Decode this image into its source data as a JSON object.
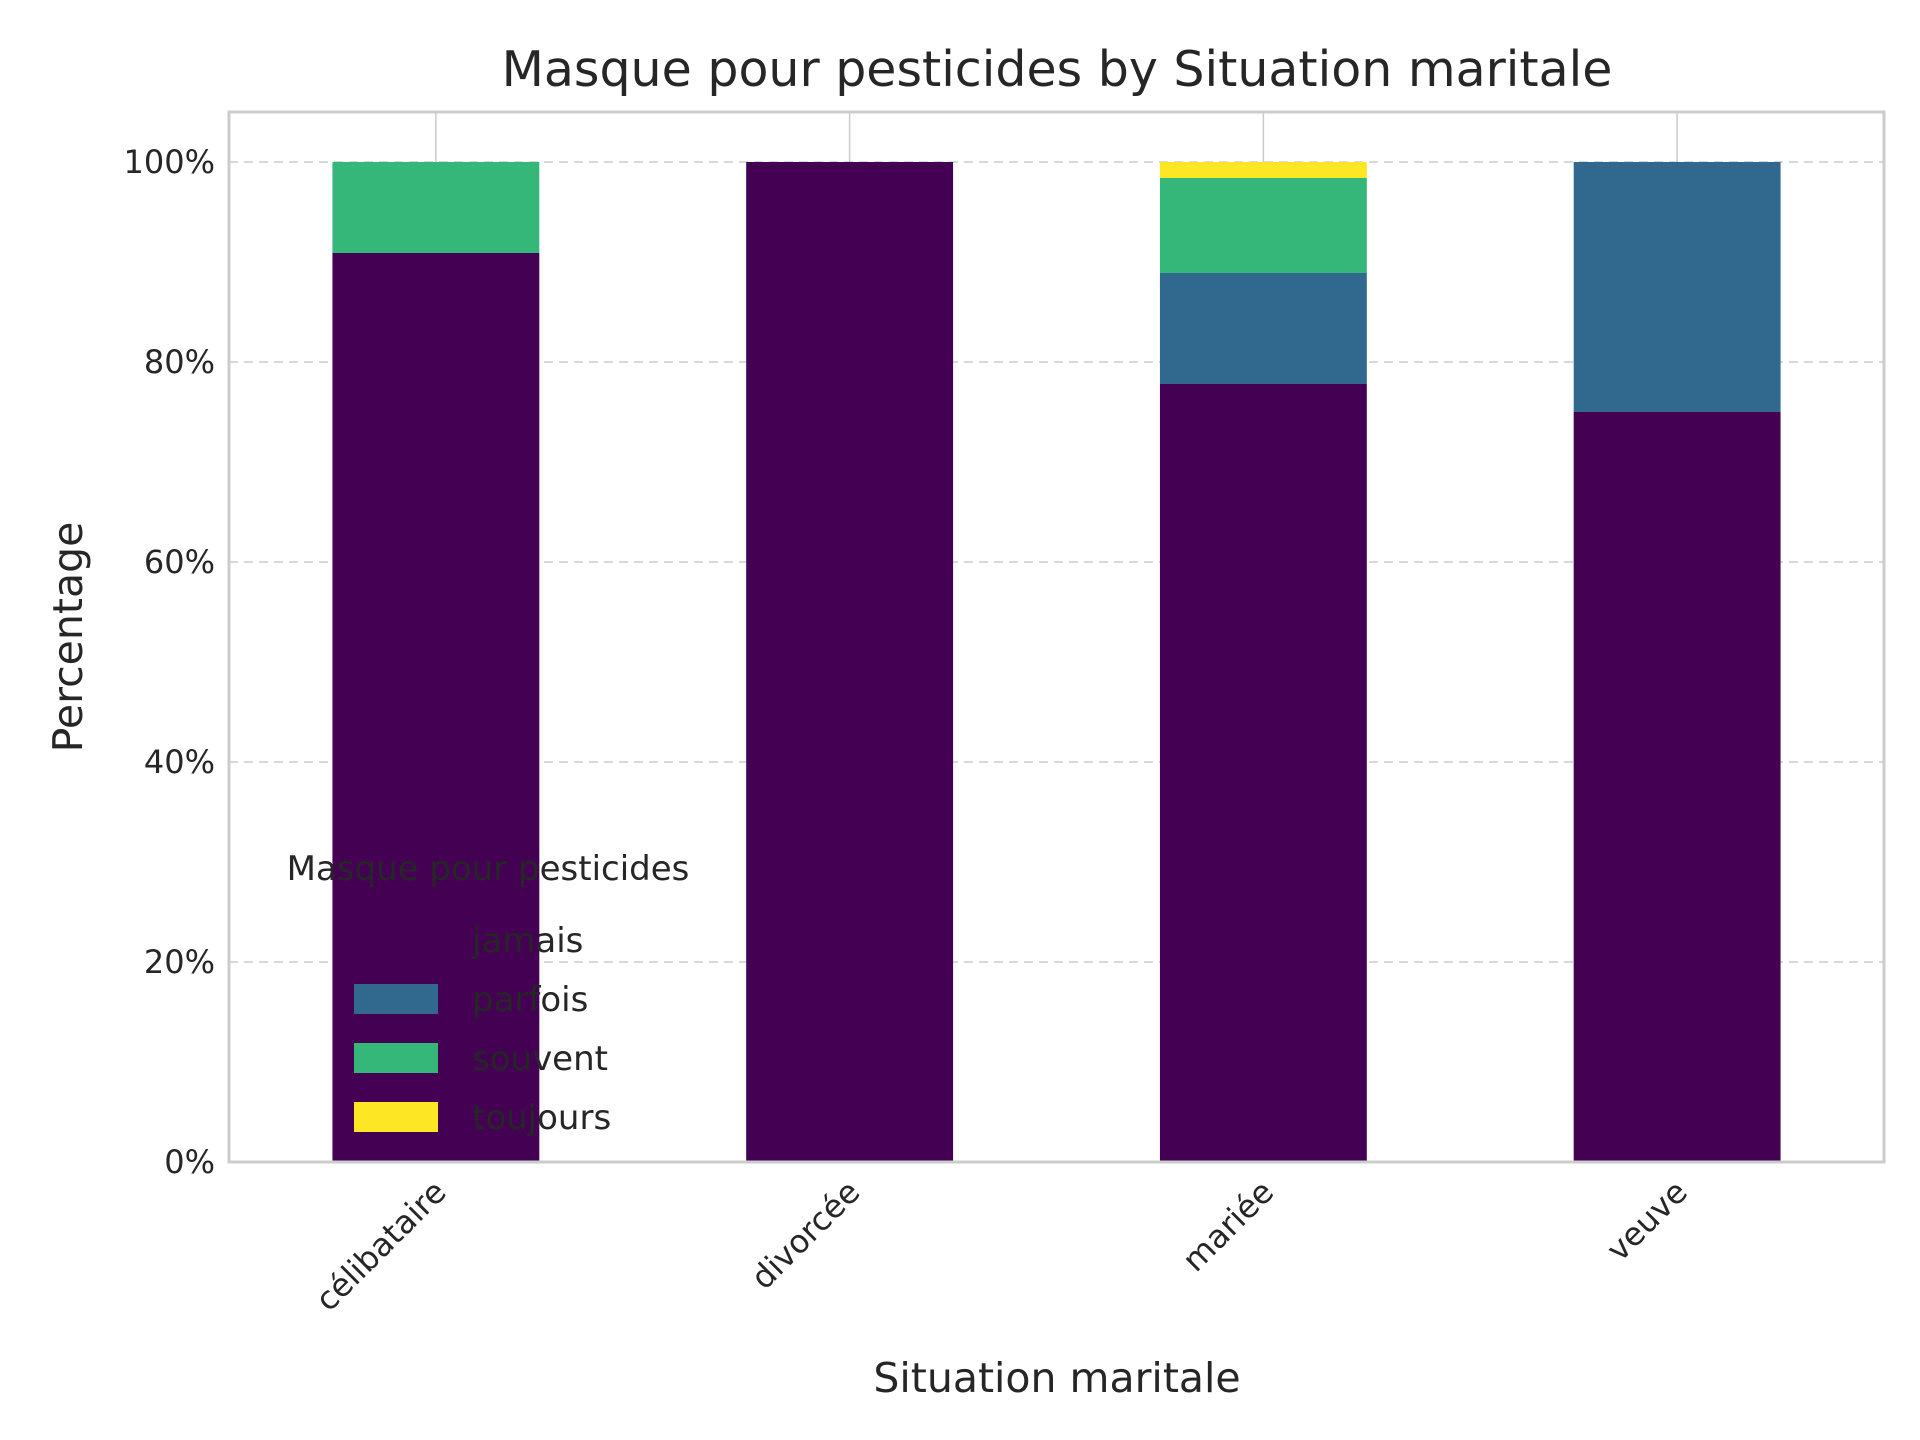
{
  "chart_data": {
    "type": "bar",
    "stacked": true,
    "title": "Masque pour pesticides by Situation maritale",
    "xlabel": "Situation maritale",
    "ylabel": "Percentage",
    "ylim": [
      0,
      105
    ],
    "yticks": [
      0,
      20,
      40,
      60,
      80,
      100
    ],
    "ytick_labels": [
      "0%",
      "20%",
      "40%",
      "60%",
      "80%",
      "100%"
    ],
    "grid": true,
    "categories": [
      "célibataire",
      "divorcée",
      "mariée",
      "veuve"
    ],
    "series": [
      {
        "name": "jamais",
        "color": "#440154",
        "values": [
          90.9,
          100,
          77.8,
          75.0
        ]
      },
      {
        "name": "parfois",
        "color": "#31688e",
        "values": [
          0,
          0,
          11.1,
          25.0
        ]
      },
      {
        "name": "souvent",
        "color": "#35b779",
        "values": [
          9.1,
          0,
          9.5,
          0
        ]
      },
      {
        "name": "toujours",
        "color": "#fde725",
        "values": [
          0,
          0,
          1.6,
          0
        ]
      }
    ],
    "legend": {
      "title": "Masque pour pesticides",
      "placement": "lower-left"
    }
  }
}
